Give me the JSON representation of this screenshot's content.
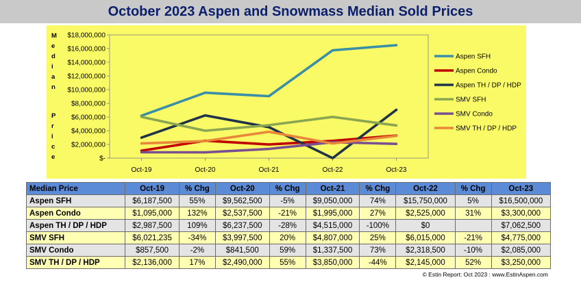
{
  "title": "October 2023 Aspen and Snowmass Median Sold Prices",
  "footer": "© Estin Report: Oct 2023 : www.EstinAspen.com",
  "chart_data": {
    "type": "line",
    "ylabel_letters": [
      "M",
      "e",
      "d",
      "i",
      "a",
      "n",
      "P",
      "r",
      "i",
      "c",
      "e"
    ],
    "categories": [
      "Oct-19",
      "Oct-20",
      "Oct-21",
      "Oct-22",
      "Oct-23"
    ],
    "ylim": [
      0,
      18000000
    ],
    "yticks": [
      0,
      2000000,
      4000000,
      6000000,
      8000000,
      10000000,
      12000000,
      14000000,
      16000000,
      18000000
    ],
    "ytick_labels": [
      "$-",
      "$2,000,000",
      "$4,000,000",
      "$6,000,000",
      "$8,000,000",
      "$10,000,000",
      "$12,000,000",
      "$14,000,000",
      "$16,000,000",
      "$18,000,000"
    ],
    "series": [
      {
        "name": "Aspen SFH",
        "color": "#3a8fa8",
        "values": [
          6187500,
          9562500,
          9050000,
          15750000,
          16500000
        ]
      },
      {
        "name": "Aspen Condo",
        "color": "#c00000",
        "values": [
          1095000,
          2537500,
          1995000,
          2525000,
          3300000
        ]
      },
      {
        "name": "Aspen TH / DP / HDP",
        "color": "#1f3349",
        "values": [
          2987500,
          6237500,
          4515000,
          0,
          7062500
        ]
      },
      {
        "name": "SMV SFH",
        "color": "#8aa650",
        "values": [
          6021235,
          3997500,
          4807000,
          6015000,
          4775000
        ]
      },
      {
        "name": "SMV Condo",
        "color": "#7a4f91",
        "values": [
          857500,
          841500,
          1337500,
          2318500,
          2085000
        ]
      },
      {
        "name": "SMV TH / DP / HDP",
        "color": "#e8863a",
        "values": [
          2136000,
          2490000,
          3850000,
          2145000,
          3250000
        ]
      }
    ]
  },
  "table": {
    "headers": [
      "Median Price",
      "Oct-19",
      "% Chg",
      "Oct-20",
      "% Chg",
      "Oct-21",
      "% Chg",
      "Oct-22",
      "% Chg",
      "Oct-23"
    ],
    "rows": [
      [
        "Aspen SFH",
        "$6,187,500",
        "55%",
        "$9,562,500",
        "-5%",
        "$9,050,000",
        "74%",
        "$15,750,000",
        "5%",
        "$16,500,000"
      ],
      [
        "Aspen Condo",
        "$1,095,000",
        "132%",
        "$2,537,500",
        "-21%",
        "$1,995,000",
        "27%",
        "$2,525,000",
        "31%",
        "$3,300,000"
      ],
      [
        "Aspen TH / DP / HDP",
        "$2,987,500",
        "109%",
        "$6,237,500",
        "-28%",
        "$4,515,000",
        "-100%",
        "$0",
        "",
        "$7,062,500"
      ],
      [
        "SMV SFH",
        "$6,021,235",
        "-34%",
        "$3,997,500",
        "20%",
        "$4,807,000",
        "25%",
        "$6,015,000",
        "-21%",
        "$4,775,000"
      ],
      [
        "SMV Condo",
        "$857,500",
        "-2%",
        "$841,500",
        "59%",
        "$1,337,500",
        "73%",
        "$2,318,500",
        "-10%",
        "$2,085,000"
      ],
      [
        "SMV TH / DP / HDP",
        "$2,136,000",
        "17%",
        "$2,490,000",
        "55%",
        "$3,850,000",
        "-44%",
        "$2,145,000",
        "52%",
        "$3,250,000"
      ]
    ]
  }
}
